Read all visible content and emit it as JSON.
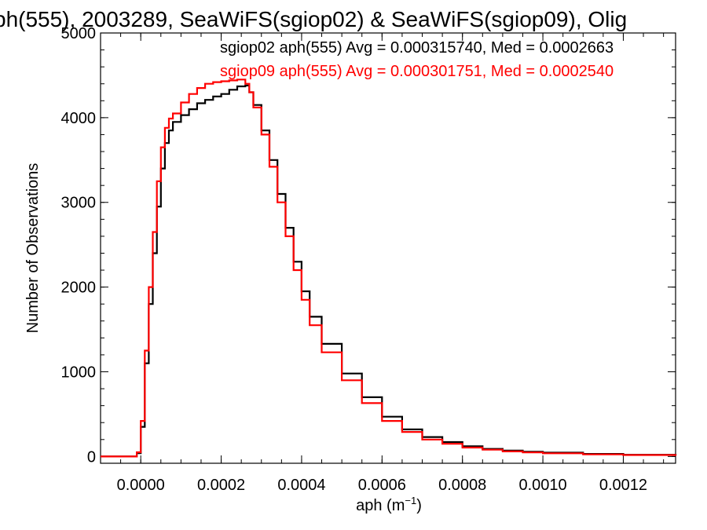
{
  "chart_data": {
    "type": "line",
    "title": "ph(555), 2003289, SeaWiFS(sgiop02) & SeaWiFS(sgiop09), Olig",
    "xlabel": "aph (m",
    "xlabel_sup": "−1",
    "xlabel_close": ")",
    "ylabel": "Number of Observations",
    "xlim": [
      -0.0001,
      0.00133
    ],
    "ylim": [
      -80,
      5000
    ],
    "x_ticks": [
      0.0,
      0.0002,
      0.0004,
      0.0006,
      0.0008,
      0.001,
      0.0012
    ],
    "x_tick_labels": [
      "0.0000",
      "0.0002",
      "0.0004",
      "0.0006",
      "0.0008",
      "0.0010",
      "0.0012"
    ],
    "y_ticks": [
      0,
      1000,
      2000,
      3000,
      4000,
      5000
    ],
    "y_tick_labels": [
      "0",
      "1000",
      "2000",
      "3000",
      "4000",
      "5000"
    ],
    "series": [
      {
        "name": "sgiop02 aph(555) Avg = 0.000315740, Med = 0.0002663",
        "color": "#000000",
        "points": [
          [
            -0.0001,
            0
          ],
          [
            -6e-05,
            0
          ],
          [
            -3e-05,
            0
          ],
          [
            -1e-05,
            40
          ],
          [
            0.0,
            350
          ],
          [
            1e-05,
            1100
          ],
          [
            2e-05,
            1800
          ],
          [
            3e-05,
            2400
          ],
          [
            4e-05,
            2950
          ],
          [
            5e-05,
            3400
          ],
          [
            6e-05,
            3700
          ],
          [
            7e-05,
            3850
          ],
          [
            8e-05,
            3950
          ],
          [
            0.0001,
            4030
          ],
          [
            0.00012,
            4100
          ],
          [
            0.00014,
            4170
          ],
          [
            0.00016,
            4210
          ],
          [
            0.00018,
            4250
          ],
          [
            0.0002,
            4280
          ],
          [
            0.00022,
            4330
          ],
          [
            0.00024,
            4370
          ],
          [
            0.00026,
            4380
          ],
          [
            0.00027,
            4300
          ],
          [
            0.00028,
            4150
          ],
          [
            0.0003,
            3850
          ],
          [
            0.00032,
            3500
          ],
          [
            0.00034,
            3100
          ],
          [
            0.00036,
            2700
          ],
          [
            0.00038,
            2300
          ],
          [
            0.0004,
            1950
          ],
          [
            0.00042,
            1650
          ],
          [
            0.00045,
            1330
          ],
          [
            0.0005,
            980
          ],
          [
            0.00055,
            700
          ],
          [
            0.0006,
            470
          ],
          [
            0.00065,
            320
          ],
          [
            0.0007,
            230
          ],
          [
            0.00075,
            170
          ],
          [
            0.0008,
            120
          ],
          [
            0.00085,
            90
          ],
          [
            0.0009,
            70
          ],
          [
            0.00095,
            55
          ],
          [
            0.001,
            45
          ],
          [
            0.0011,
            30
          ],
          [
            0.0012,
            20
          ],
          [
            0.00133,
            10
          ]
        ]
      },
      {
        "name": "sgiop09 aph(555) Avg = 0.000301751, Med = 0.0002540",
        "color": "#ff0000",
        "points": [
          [
            -0.0001,
            0
          ],
          [
            -6e-05,
            0
          ],
          [
            -3e-05,
            0
          ],
          [
            -1e-05,
            50
          ],
          [
            0.0,
            420
          ],
          [
            1e-05,
            1250
          ],
          [
            2e-05,
            2000
          ],
          [
            3e-05,
            2650
          ],
          [
            4e-05,
            3250
          ],
          [
            5e-05,
            3650
          ],
          [
            6e-05,
            3880
          ],
          [
            7e-05,
            3990
          ],
          [
            8e-05,
            4050
          ],
          [
            0.0001,
            4180
          ],
          [
            0.00012,
            4280
          ],
          [
            0.00014,
            4350
          ],
          [
            0.00016,
            4400
          ],
          [
            0.00018,
            4420
          ],
          [
            0.0002,
            4430
          ],
          [
            0.00022,
            4440
          ],
          [
            0.00024,
            4450
          ],
          [
            0.00026,
            4400
          ],
          [
            0.00027,
            4300
          ],
          [
            0.00028,
            4120
          ],
          [
            0.0003,
            3800
          ],
          [
            0.00032,
            3420
          ],
          [
            0.00034,
            3000
          ],
          [
            0.00036,
            2600
          ],
          [
            0.00038,
            2200
          ],
          [
            0.0004,
            1850
          ],
          [
            0.00042,
            1550
          ],
          [
            0.00045,
            1230
          ],
          [
            0.0005,
            900
          ],
          [
            0.00055,
            630
          ],
          [
            0.0006,
            420
          ],
          [
            0.00065,
            290
          ],
          [
            0.0007,
            200
          ],
          [
            0.00075,
            150
          ],
          [
            0.0008,
            105
          ],
          [
            0.00085,
            80
          ],
          [
            0.0009,
            60
          ],
          [
            0.00095,
            48
          ],
          [
            0.001,
            38
          ],
          [
            0.0011,
            25
          ],
          [
            0.0012,
            17
          ],
          [
            0.00133,
            8
          ]
        ]
      }
    ]
  }
}
